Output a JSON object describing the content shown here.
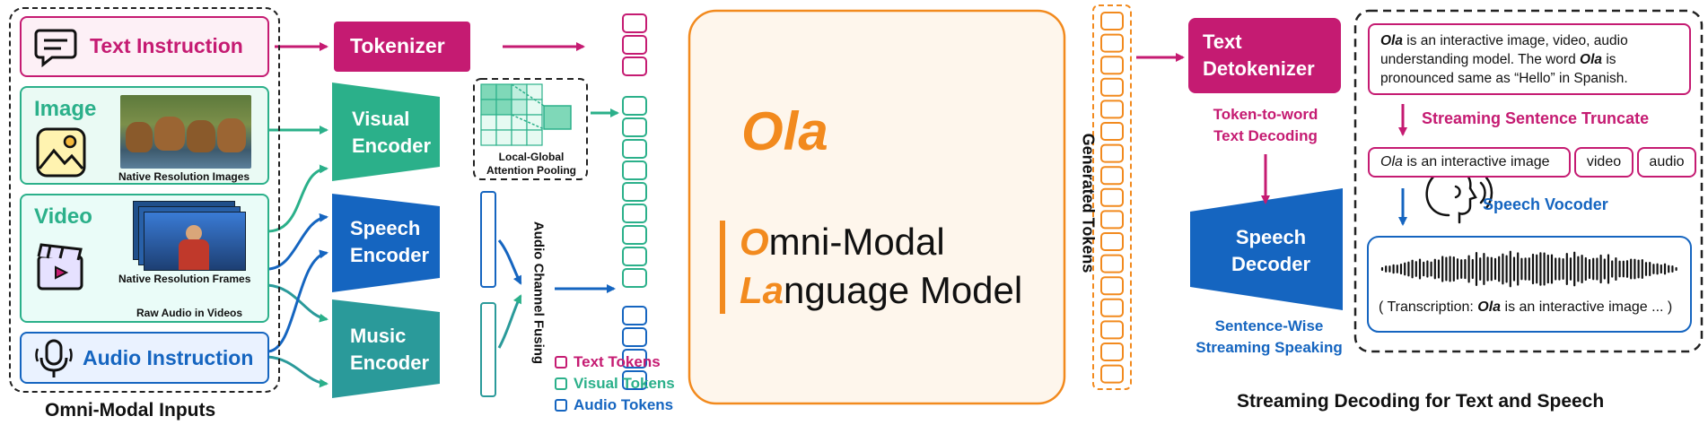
{
  "inputs": {
    "title": "Omni-Modal Inputs",
    "text_instruction": "Text Instruction",
    "image": {
      "label": "Image",
      "caption": "Native Resolution Images"
    },
    "video": {
      "label": "Video",
      "caption_frames": "Native Resolution Frames",
      "caption_audio": "Raw Audio in Videos"
    },
    "audio_instruction": "Audio Instruction"
  },
  "modules": {
    "tokenizer": "Tokenizer",
    "visual_encoder": [
      "Visual",
      "Encoder"
    ],
    "speech_encoder": [
      "Speech",
      "Encoder"
    ],
    "music_encoder": [
      "Music",
      "Encoder"
    ],
    "pooling": [
      "Local-Global",
      "Attention Pooling"
    ],
    "fusing": "Audio Channel Fusing"
  },
  "legend": {
    "text_tokens": "Text Tokens",
    "visual_tokens": "Visual Tokens",
    "audio_tokens": "Audio Tokens"
  },
  "model": {
    "name": "Ola",
    "line1_accent": "O",
    "line1_rest": "mni-Modal",
    "line2_accent": "La",
    "line2_rest": "nguage Model"
  },
  "generated_tokens": "Generated Tokens",
  "decoding": {
    "title": "Streaming Decoding for Text and Speech",
    "detokenizer": [
      "Text",
      "Detokenizer"
    ],
    "detok_caption": [
      "Token-to-word",
      "Text Decoding"
    ],
    "speech_decoder": [
      "Speech",
      "Decoder"
    ],
    "speaking_caption": [
      "Sentence-Wise",
      "Streaming Speaking"
    ],
    "output_text": {
      "line1_bold": "Ola",
      "line1_rest": " is an interactive image, video, audio",
      "line2_pre": "understanding model. The word ",
      "line2_bold": "Ola",
      "line2_post": " is",
      "line3": "pronounced same as  “Hello” in Spanish."
    },
    "truncate_label": "Streaming Sentence Truncate",
    "segments": {
      "first_italic": "Ola",
      "first_rest": " is an interactive image",
      "second": "video",
      "third": "audio"
    },
    "vocoder_label": "Speech Vocoder",
    "transcription": {
      "pre": "( Transcription: ",
      "bold": "Ola",
      "post": " is an interactive image ... )"
    }
  },
  "colors": {
    "magenta": "#c51b72",
    "teal": "#2bb08a",
    "blue": "#1565c0",
    "dark_teal": "#2a9a9a",
    "orange": "#f28a1e"
  }
}
